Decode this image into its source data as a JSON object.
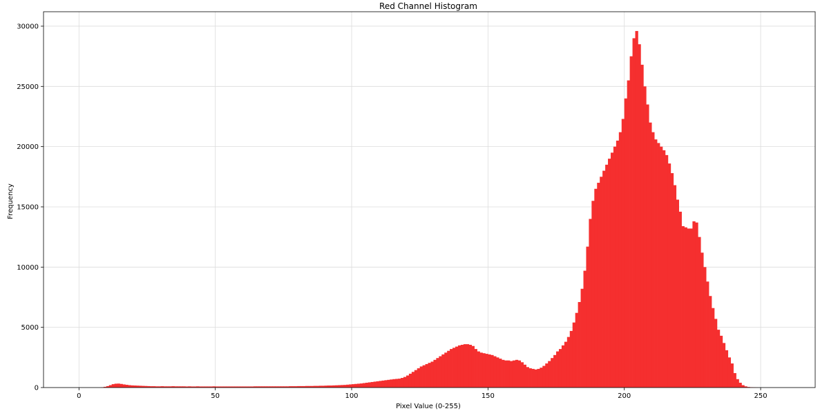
{
  "chart_data": {
    "type": "bar",
    "title": "Red Channel Histogram",
    "xlabel": "Pixel Value (0-255)",
    "ylabel": "Frequency",
    "xlim": [
      -13,
      270
    ],
    "ylim": [
      0,
      31200
    ],
    "xticks": [
      0,
      50,
      100,
      150,
      200,
      250
    ],
    "yticks": [
      0,
      5000,
      10000,
      15000,
      20000,
      25000,
      30000
    ],
    "grid": true,
    "bar_color": "#f52f2f",
    "bin_start": 0,
    "values": [
      0,
      0,
      0,
      0,
      0,
      0,
      0,
      0,
      20,
      60,
      120,
      200,
      280,
      320,
      330,
      300,
      260,
      230,
      200,
      180,
      170,
      160,
      150,
      140,
      130,
      120,
      110,
      110,
      100,
      100,
      110,
      100,
      100,
      100,
      110,
      100,
      100,
      100,
      100,
      90,
      100,
      90,
      90,
      100,
      90,
      90,
      90,
      90,
      90,
      100,
      90,
      90,
      90,
      90,
      90,
      90,
      90,
      90,
      90,
      90,
      90,
      90,
      90,
      90,
      100,
      100,
      100,
      100,
      100,
      100,
      100,
      100,
      100,
      100,
      100,
      100,
      100,
      110,
      110,
      110,
      120,
      120,
      120,
      130,
      130,
      130,
      140,
      140,
      150,
      150,
      160,
      170,
      170,
      180,
      190,
      200,
      210,
      220,
      240,
      260,
      280,
      300,
      320,
      340,
      370,
      400,
      430,
      460,
      490,
      520,
      550,
      580,
      610,
      640,
      670,
      700,
      720,
      740,
      800,
      880,
      1000,
      1150,
      1300,
      1450,
      1600,
      1750,
      1850,
      1950,
      2050,
      2150,
      2300,
      2450,
      2600,
      2750,
      2900,
      3050,
      3200,
      3300,
      3400,
      3500,
      3550,
      3600,
      3600,
      3550,
      3450,
      3200,
      3000,
      2900,
      2850,
      2800,
      2750,
      2700,
      2600,
      2500,
      2400,
      2300,
      2250,
      2250,
      2200,
      2250,
      2300,
      2250,
      2100,
      1900,
      1700,
      1600,
      1550,
      1500,
      1550,
      1650,
      1800,
      2000,
      2200,
      2450,
      2700,
      3000,
      3200,
      3500,
      3800,
      4200,
      4700,
      5400,
      6200,
      7100,
      8200,
      9700,
      11700,
      14000,
      15500,
      16500,
      17000,
      17500,
      18000,
      18500,
      19000,
      19500,
      20000,
      20500,
      21200,
      22300,
      24000,
      25500,
      27500,
      29000,
      29600,
      28500,
      26800,
      25000,
      23500,
      22000,
      21200,
      20600,
      20300,
      20000,
      19700,
      19300,
      18600,
      17800,
      16800,
      15600,
      14600,
      13400,
      13300,
      13200,
      13200,
      13800,
      13700,
      12500,
      11200,
      10000,
      8800,
      7600,
      6600,
      5700,
      4800,
      4300,
      3700,
      3100,
      2500,
      2000,
      1200,
      700,
      400,
      200,
      100,
      50,
      30,
      20,
      10,
      0,
      0,
      0,
      0,
      0,
      0,
      0
    ]
  }
}
